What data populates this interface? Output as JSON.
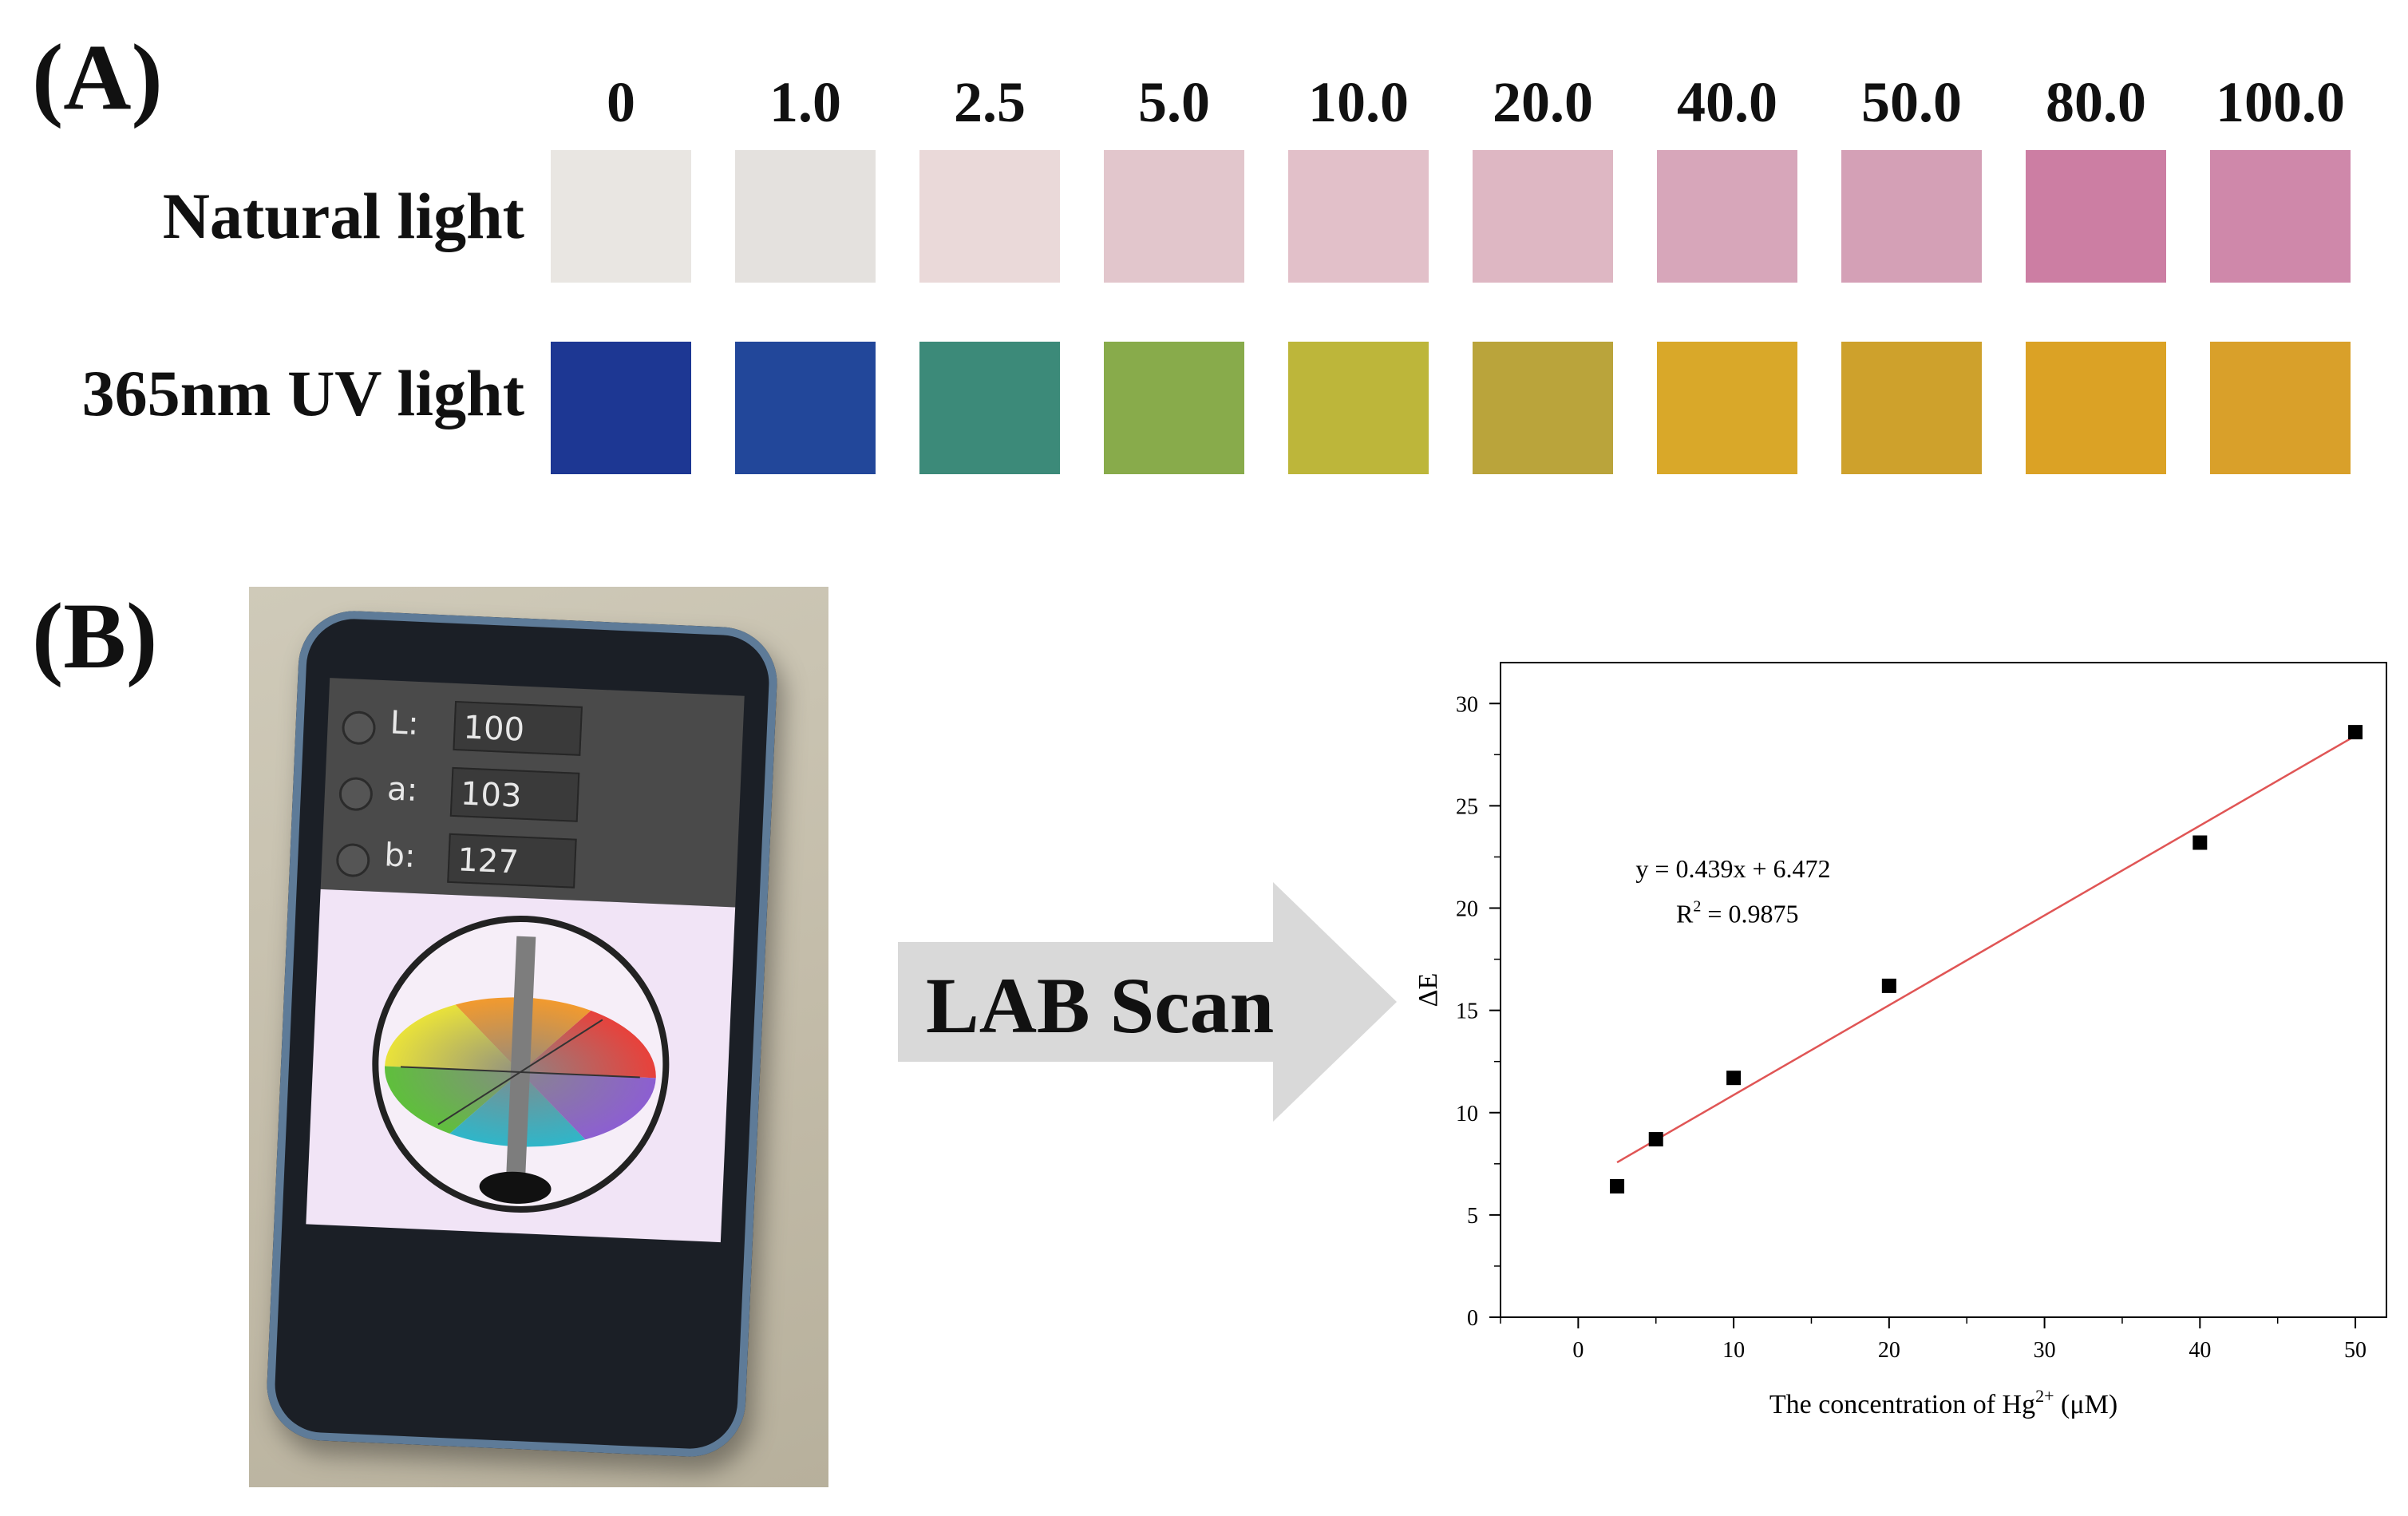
{
  "panel_a": {
    "label": "(A)",
    "concentrations": [
      "0",
      "1.0",
      "2.5",
      "5.0",
      "10.0",
      "20.0",
      "40.0",
      "50.0",
      "80.0",
      "100.0"
    ],
    "row_labels": {
      "natural": "Natural light",
      "uv": "365nm UV light"
    },
    "natural_colors": [
      "#e9e6e2",
      "#e4e1de",
      "#ead9d9",
      "#e2c6cc",
      "#e2c0c9",
      "#deb7c3",
      "#d7a6ba",
      "#d4a0b6",
      "#cc7ea3",
      "#cf88aa"
    ],
    "uv_colors": [
      "#1d3793",
      "#22479a",
      "#3c8a79",
      "#88ab4b",
      "#bdb63a",
      "#baa43b",
      "#d9a829",
      "#cea12c",
      "#dba225",
      "#d9a02a"
    ]
  },
  "panel_b": {
    "label": "(B)",
    "phone": {
      "rows": [
        {
          "key": "L:",
          "value": "100"
        },
        {
          "key": "a:",
          "value": "103"
        },
        {
          "key": "b:",
          "value": "127"
        }
      ]
    },
    "arrow_text": "LAB Scan"
  },
  "chart_data": {
    "type": "scatter",
    "xlabel": "The concentration of Hg",
    "xlabel_sup": "2+",
    "xlabel_unit": " (μM)",
    "ylabel": "ΔE",
    "xlim": [
      -5,
      52
    ],
    "ylim": [
      0,
      32
    ],
    "xticks": [
      0,
      10,
      20,
      30,
      40,
      50
    ],
    "yticks": [
      0,
      5,
      10,
      15,
      20,
      25,
      30
    ],
    "series": [
      {
        "x": [
          2.5,
          5,
          10,
          20,
          40,
          50
        ],
        "y": [
          6.4,
          8.7,
          11.7,
          16.2,
          23.2,
          28.6
        ],
        "marker": "square",
        "color": "#000000"
      }
    ],
    "fit_line": {
      "slope": 0.439,
      "intercept": 6.472,
      "x_range": [
        2.5,
        50
      ],
      "color": "#e05555"
    },
    "annotation": {
      "equation": "y = 0.439x + 6.472",
      "r2_prefix": "R",
      "r2_sup": "2",
      "r2_suffix": " = 0.9875"
    },
    "grid": false
  }
}
